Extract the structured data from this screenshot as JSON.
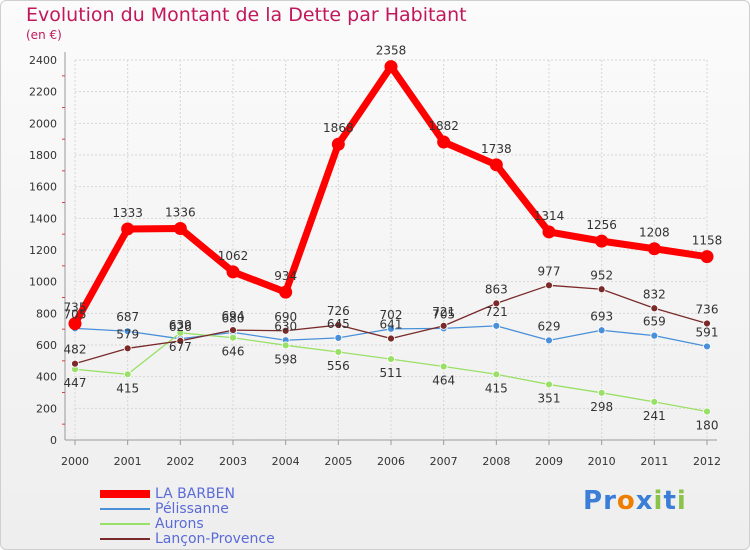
{
  "header": {
    "title": "Evolution du Montant de la Dette par Habitant",
    "subtitle": "(en €)"
  },
  "chart_data": {
    "type": "line",
    "x": [
      2000,
      2001,
      2002,
      2003,
      2004,
      2005,
      2006,
      2007,
      2008,
      2009,
      2010,
      2011,
      2012
    ],
    "ylim": [
      0,
      2400
    ],
    "yticks": [
      0,
      200,
      400,
      600,
      800,
      1000,
      1200,
      1400,
      1600,
      1800,
      2000,
      2200,
      2400
    ],
    "grid": true,
    "legend_position": "bottom-left",
    "series": [
      {
        "name": "LA BARBEN",
        "color": "#ff0000",
        "values": [
          735,
          1333,
          1336,
          1062,
          934,
          1868,
          2358,
          1882,
          1738,
          1314,
          1256,
          1208,
          1158
        ]
      },
      {
        "name": "Pélissanne",
        "color": "#4a90d9",
        "values": [
          705,
          687,
          639,
          680,
          630,
          645,
          702,
          705,
          721,
          629,
          693,
          659,
          591
        ]
      },
      {
        "name": "Aurons",
        "color": "#99e066",
        "values": [
          447,
          415,
          677,
          646,
          598,
          556,
          511,
          464,
          415,
          351,
          298,
          241,
          180
        ]
      },
      {
        "name": "Lançon-Provence",
        "color": "#7a2a2a",
        "values": [
          482,
          579,
          626,
          694,
          690,
          726,
          641,
          721,
          863,
          977,
          952,
          832,
          736
        ]
      }
    ]
  },
  "logo": {
    "letters": [
      "P",
      "r",
      "o",
      "x",
      "i",
      "t",
      "i"
    ],
    "colors": [
      "#3a7ed8",
      "#3a7ed8",
      "#ef7d00",
      "#3a7ed8",
      "#8bc34a",
      "#3a7ed8",
      "#8bc34a"
    ]
  }
}
